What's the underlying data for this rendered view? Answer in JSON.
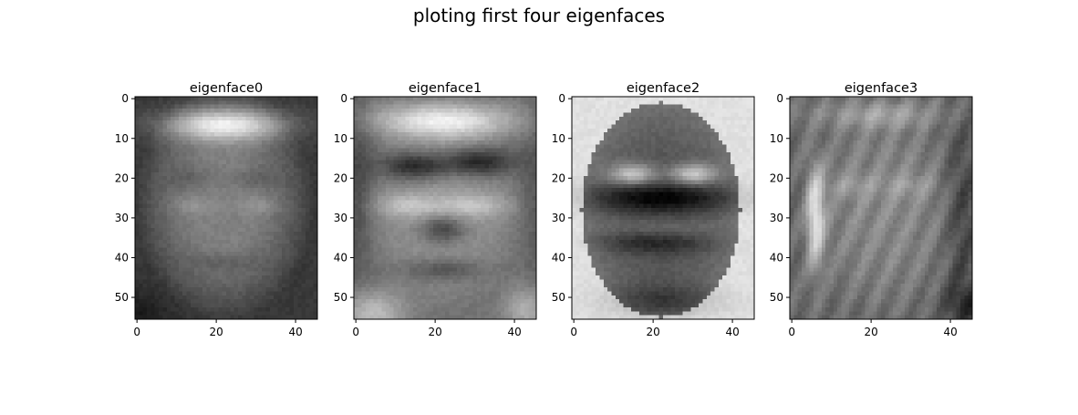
{
  "chart_data": {
    "type": "heatmap",
    "title": "ploting first four eigenfaces",
    "colormap": "gray",
    "image_shape": [
      56,
      46
    ],
    "xticks": [
      0,
      20,
      40
    ],
    "yticks": [
      0,
      10,
      20,
      30,
      40,
      50
    ],
    "xlim": [
      -0.5,
      45.5
    ],
    "ylim": [
      55.5,
      -0.5
    ],
    "panels": [
      {
        "title": "eigenface0",
        "face": 0
      },
      {
        "title": "eigenface1",
        "face": 1
      },
      {
        "title": "eigenface2",
        "face": 2
      },
      {
        "title": "eigenface3",
        "face": 3
      }
    ]
  }
}
